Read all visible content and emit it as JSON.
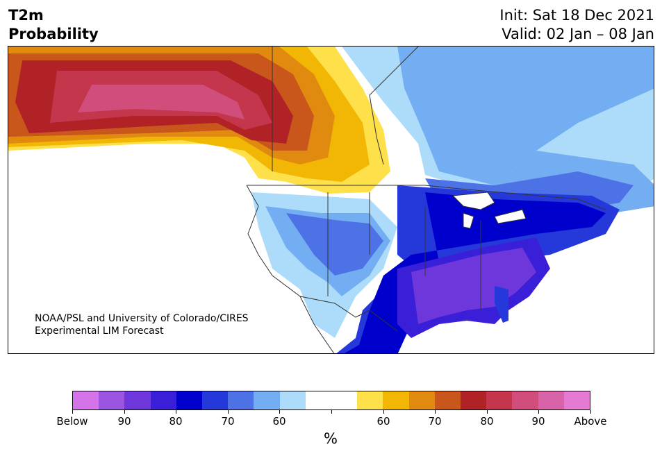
{
  "title": {
    "variable": "T2m",
    "kind": "Probability",
    "init": "Init: Sat 18 Dec 2021",
    "valid": "Valid: 02 Jan – 08 Jan"
  },
  "credit": {
    "line1": "NOAA/PSL and University of Colorado/CIRES",
    "line2": "Experimental LIM Forecast"
  },
  "colorbar": {
    "colors": [
      "#d474e8",
      "#9c55e0",
      "#6e37dc",
      "#3a1fd8",
      "#0000cc",
      "#2538da",
      "#4d72e6",
      "#74aef2",
      "#addcfb",
      "#ffffff",
      "#ffffff",
      "#fee04b",
      "#f2b705",
      "#e08a10",
      "#c9561a",
      "#b02225",
      "#c4364c",
      "#d04d7c",
      "#d863a8",
      "#e47ad4"
    ],
    "labels": [
      "Below",
      "90",
      "80",
      "70",
      "60",
      "",
      "60",
      "70",
      "80",
      "90",
      "Above"
    ],
    "unit": "%"
  },
  "map": {
    "region": "North America",
    "layers": [
      "coastlines",
      "country borders",
      "state/province borders"
    ],
    "regions": [
      {
        "area": "Alaska",
        "category": "Above",
        "level": "80-90"
      },
      {
        "area": "Western Canada",
        "category": "Above",
        "level": "70-80"
      },
      {
        "area": "Saskatchewan / Manitoba",
        "category": "Above",
        "level": "60-70"
      },
      {
        "area": "Nunavut / Hudson Bay",
        "category": "Below",
        "level": "60-70"
      },
      {
        "area": "Great Lakes / Northeast US",
        "category": "Below",
        "level": "70-80"
      },
      {
        "area": "Southeastern US",
        "category": "Below",
        "level": "80-90"
      },
      {
        "area": "Texas / Gulf Coast",
        "category": "Below",
        "level": "80-90"
      },
      {
        "area": "Rockies / Great Basin",
        "category": "Below",
        "level": "60-70"
      }
    ]
  }
}
